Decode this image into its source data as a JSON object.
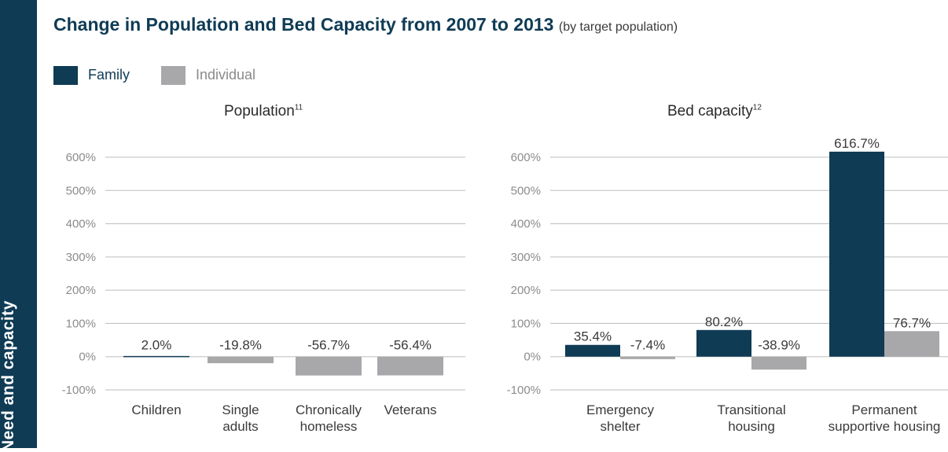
{
  "sidebar": {
    "label": "Need and capacity"
  },
  "title": {
    "main": "Change in Population and Bed Capacity from 2007 to 2013",
    "sub": "(by target population)"
  },
  "legend": [
    {
      "label": "Family",
      "color": "#0f3b55"
    },
    {
      "label": "Individual",
      "color": "#a8a8ab"
    }
  ],
  "chart_data": [
    {
      "type": "bar",
      "title": "Population",
      "title_sup": "11",
      "categories": [
        "Children",
        "Single adults",
        "Chronically homeless",
        "Veterans"
      ],
      "series": [
        {
          "name": "Family",
          "values": [
            2.0,
            null,
            null,
            null
          ]
        },
        {
          "name": "Individual",
          "values": [
            null,
            -19.8,
            -56.7,
            -56.4
          ]
        }
      ],
      "value_labels": [
        "2.0%",
        "-19.8%",
        "-56.7%",
        "-56.4%"
      ],
      "yticks": [
        "600%",
        "500%",
        "400%",
        "300%",
        "200%",
        "100%",
        "0%",
        "-100%"
      ],
      "ylim": [
        -100,
        600
      ],
      "grid": true
    },
    {
      "type": "bar",
      "title": "Bed capacity",
      "title_sup": "12",
      "categories": [
        "Emergency shelter",
        "Transitional housing",
        "Permanent supportive housing"
      ],
      "series": [
        {
          "name": "Family",
          "values": [
            35.4,
            80.2,
            616.7
          ],
          "labels": [
            "35.4%",
            "80.2%",
            "616.7%"
          ]
        },
        {
          "name": "Individual",
          "values": [
            -7.4,
            -38.9,
            76.7
          ],
          "labels": [
            "-7.4%",
            "-38.9%",
            "76.7%"
          ]
        }
      ],
      "yticks": [
        "600%",
        "500%",
        "400%",
        "300%",
        "200%",
        "100%",
        "0%",
        "-100%"
      ],
      "ylim": [
        -100,
        600
      ],
      "grid": true
    }
  ]
}
